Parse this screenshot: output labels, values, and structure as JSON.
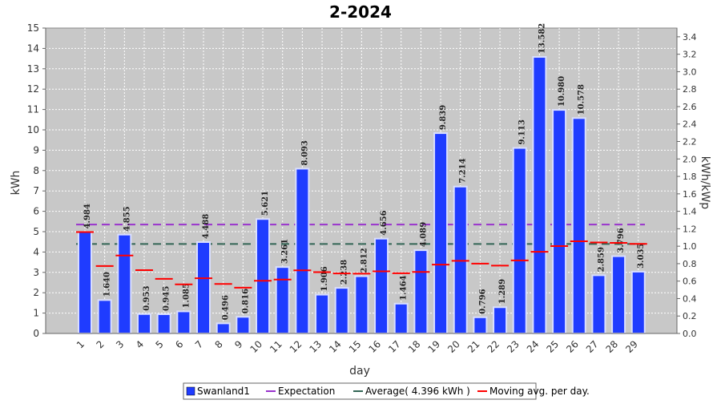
{
  "chart_data": {
    "type": "bar",
    "title": "2-2024",
    "xlabel": "day",
    "ylabel": "kWh",
    "y2label": "kWh/kWp",
    "ylim": [
      0,
      15
    ],
    "y2lim": [
      0,
      3.5
    ],
    "yticks": [
      "0",
      "1",
      "2",
      "3",
      "4",
      "5",
      "6",
      "7",
      "8",
      "9",
      "10",
      "11",
      "12",
      "13",
      "14",
      "15"
    ],
    "y2ticks": [
      "0.0",
      "0.2",
      "0.4",
      "0.6",
      "0.8",
      "1.0",
      "1.2",
      "1.4",
      "1.6",
      "1.8",
      "2.0",
      "2.2",
      "2.4",
      "2.6",
      "2.8",
      "3.0",
      "3.2",
      "3.4"
    ],
    "categories": [
      "1",
      "2",
      "3",
      "4",
      "5",
      "6",
      "7",
      "8",
      "9",
      "10",
      "11",
      "12",
      "13",
      "14",
      "15",
      "16",
      "17",
      "18",
      "19",
      "20",
      "21",
      "22",
      "23",
      "24",
      "25",
      "26",
      "27",
      "28",
      "29"
    ],
    "series": [
      {
        "name": "Swanland1",
        "values": [
          4.984,
          1.64,
          4.855,
          0.953,
          0.945,
          1.085,
          4.488,
          0.496,
          0.816,
          5.621,
          3.261,
          8.093,
          1.906,
          2.238,
          2.812,
          4.656,
          1.464,
          4.089,
          9.839,
          7.214,
          0.796,
          1.289,
          9.113,
          13.582,
          10.98,
          10.578,
          2.859,
          3.796,
          3.035
        ],
        "labels": [
          "4.984",
          "1.640",
          "4.855",
          "0.953",
          "0.945",
          "1.085",
          "4.488",
          "0.496",
          "0.816",
          "5.621",
          "3.261",
          "8.093",
          "1.906",
          "2.238",
          "2.812",
          "4.656",
          "1.464",
          "4.089",
          "9.839",
          "7.214",
          "0.796",
          "1.289",
          "9.113",
          "13.582",
          "10.980",
          "10.578",
          "2.859",
          "3.796",
          "3.035"
        ],
        "color": "#1f3cff"
      },
      {
        "name": "Moving avg. per day.",
        "values": [
          4.98,
          3.31,
          3.83,
          3.11,
          2.68,
          2.41,
          2.71,
          2.43,
          2.25,
          2.59,
          2.65,
          3.1,
          3.01,
          2.95,
          2.94,
          3.05,
          2.96,
          3.02,
          3.38,
          3.57,
          3.43,
          3.33,
          3.59,
          4.01,
          4.29,
          4.53,
          4.47,
          4.45,
          4.4
        ],
        "color": "#ff0000"
      }
    ],
    "reference_lines": [
      {
        "name": "Expectation",
        "value": 5.35,
        "color": "#9933cc"
      },
      {
        "name": "Average( 4.396 kWh )",
        "value": 4.396,
        "color": "#336655"
      }
    ],
    "legend_position": "bottom",
    "grid": true,
    "plot_background": "#c8c8c8"
  }
}
